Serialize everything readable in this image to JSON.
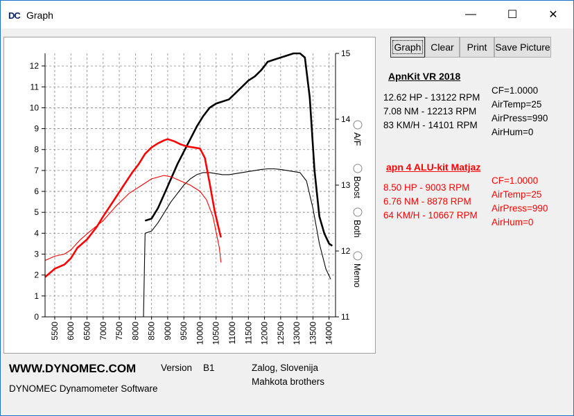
{
  "window": {
    "title": "Graph",
    "icon": "DC",
    "controls": {
      "minimize": "—",
      "maximize": "☐",
      "close": "✕"
    }
  },
  "toolbar": {
    "graph_label": "Graph",
    "clear_label": "Clear",
    "print_label": "Print",
    "save_picture_label": "Save Picture"
  },
  "options": {
    "items": [
      {
        "label": "A/F"
      },
      {
        "label": "Boost"
      },
      {
        "label": "Both"
      },
      {
        "label": "Memo"
      }
    ]
  },
  "runs": [
    {
      "name": "ApnKit VR 2018",
      "color": "#000000",
      "results": [
        "12.62 HP - 13122 RPM",
        "7.08 NM - 12213 RPM",
        "83 KM/H - 14101 RPM"
      ],
      "conditions": [
        "CF=1.0000",
        "AirTemp=25",
        "AirPress=990",
        "AirHum=0"
      ]
    },
    {
      "name": "apn 4  ALU-kit Matjaz",
      "color": "#ff0000",
      "results": [
        "8.50 HP - 9003 RPM",
        "6.76 NM - 8878 RPM",
        "64 KM/H - 10667 RPM"
      ],
      "conditions": [
        "CF=1.0000",
        "AirTemp=25",
        "AirPress=990",
        "AirHum=0"
      ]
    }
  ],
  "footer": {
    "website": "WWW.DYNOMEC.COM",
    "version_label": "Version",
    "version_value": "B1",
    "location": "Zalog, Slovenija",
    "authors": "Mahkota brothers",
    "product": "DYNOMEC Dynamometer Software"
  },
  "chart_data": {
    "type": "line",
    "title": "",
    "xlabel": "",
    "ylabel": "",
    "xlim": [
      5200,
      14200
    ],
    "x_ticks": [
      5500,
      6000,
      6500,
      7000,
      7500,
      8000,
      8500,
      9000,
      9500,
      10000,
      10500,
      11000,
      11500,
      12000,
      12500,
      13000,
      13500,
      14000
    ],
    "ylim": [
      0,
      12.6
    ],
    "y_ticks": [
      0,
      1,
      2,
      3,
      4,
      5,
      6,
      7,
      8,
      9,
      10,
      11,
      12
    ],
    "y2lim": [
      11,
      15
    ],
    "y2_ticks": [
      11,
      12,
      13,
      14,
      15
    ],
    "grid": true,
    "series": [
      {
        "name": "ApnKit VR 2018 HP",
        "color": "#000000",
        "width": 2.6,
        "x": [
          8300,
          8500,
          8700,
          8900,
          9100,
          9300,
          9500,
          9700,
          9900,
          10100,
          10300,
          10500,
          10700,
          10900,
          11100,
          11300,
          11500,
          11700,
          11900,
          12100,
          12300,
          12500,
          12700,
          12900,
          13100,
          13250,
          13400,
          13550,
          13700,
          13850,
          14000,
          14100
        ],
        "y": [
          4.6,
          4.7,
          5.2,
          5.9,
          6.6,
          7.3,
          7.9,
          8.5,
          9.1,
          9.6,
          10.0,
          10.2,
          10.3,
          10.4,
          10.7,
          11.0,
          11.3,
          11.5,
          11.8,
          12.2,
          12.3,
          12.4,
          12.5,
          12.6,
          12.6,
          12.4,
          10.5,
          7.0,
          4.8,
          4.0,
          3.5,
          3.4
        ]
      },
      {
        "name": "ApnKit VR 2018 NM",
        "color": "#000000",
        "width": 1.1,
        "x": [
          8250,
          8300,
          8500,
          8700,
          8900,
          9100,
          9300,
          9500,
          9700,
          9900,
          10100,
          10300,
          10500,
          10700,
          10900,
          11100,
          11300,
          11500,
          11700,
          11900,
          12100,
          12300,
          12500,
          12700,
          12900,
          13100,
          13300,
          13500,
          13700,
          13900,
          14050
        ],
        "y": [
          0.0,
          4.0,
          4.1,
          4.5,
          5.0,
          5.5,
          5.9,
          6.3,
          6.6,
          6.8,
          6.9,
          6.9,
          6.85,
          6.8,
          6.8,
          6.85,
          6.9,
          6.95,
          7.0,
          7.05,
          7.08,
          7.08,
          7.05,
          7.0,
          6.95,
          6.9,
          6.5,
          5.2,
          3.5,
          2.3,
          1.8
        ]
      },
      {
        "name": "apn 4  ALU-kit Matjaz HP",
        "color": "#ff0000",
        "width": 2.6,
        "x": [
          5200,
          5500,
          5800,
          6000,
          6200,
          6500,
          6800,
          7000,
          7300,
          7600,
          7900,
          8100,
          8300,
          8500,
          8700,
          8900,
          9000,
          9200,
          9400,
          9600,
          9800,
          10000,
          10150,
          10300,
          10450,
          10600,
          10650
        ],
        "y": [
          1.9,
          2.3,
          2.5,
          2.8,
          3.3,
          3.7,
          4.3,
          4.8,
          5.5,
          6.2,
          6.9,
          7.3,
          7.8,
          8.1,
          8.3,
          8.45,
          8.5,
          8.4,
          8.25,
          8.15,
          8.1,
          8.05,
          7.6,
          6.4,
          5.1,
          4.1,
          3.8
        ]
      },
      {
        "name": "apn 4  ALU-kit Matjaz NM",
        "color": "#ff0000",
        "width": 1.1,
        "x": [
          5200,
          5500,
          5800,
          6000,
          6300,
          6600,
          7000,
          7400,
          7800,
          8200,
          8500,
          8878,
          9100,
          9400,
          9700,
          10000,
          10200,
          10400,
          10600,
          10650
        ],
        "y": [
          2.7,
          2.9,
          3.0,
          3.2,
          3.7,
          4.1,
          4.6,
          5.3,
          5.9,
          6.3,
          6.6,
          6.76,
          6.7,
          6.5,
          6.3,
          6.0,
          5.6,
          4.8,
          3.3,
          2.6
        ]
      }
    ]
  }
}
